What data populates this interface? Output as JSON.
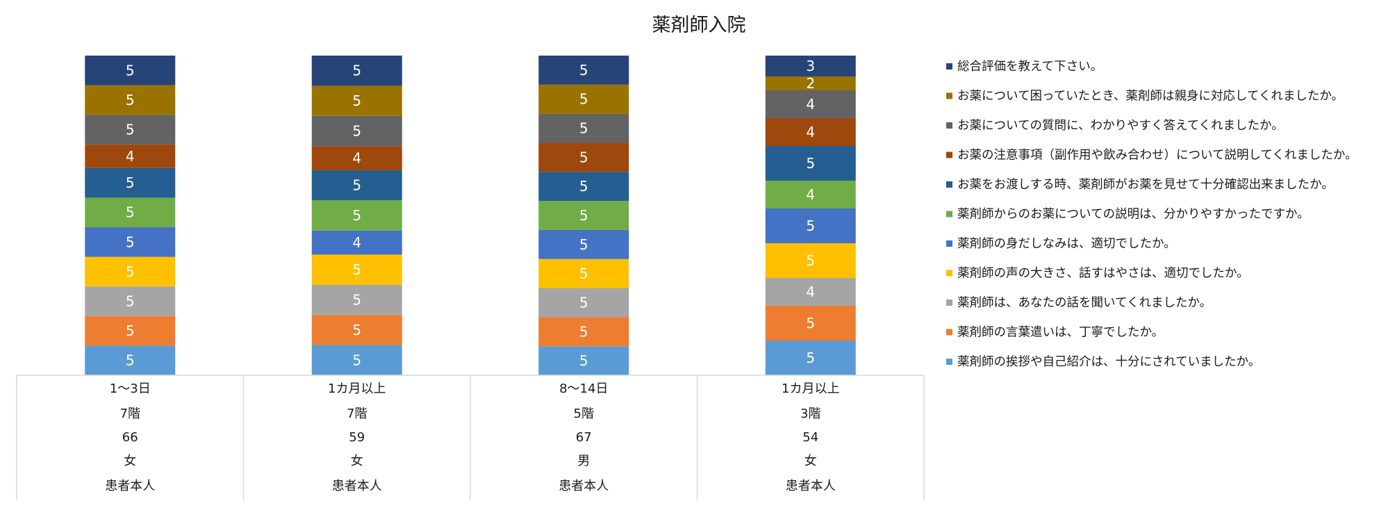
{
  "chart_data": {
    "type": "bar",
    "stacked": true,
    "title": "薬剤師入院",
    "categories": [
      [
        "1～3日",
        "7階",
        "66",
        "女",
        "患者本人"
      ],
      [
        "1カ月以上",
        "7階",
        "59",
        "女",
        "患者本人"
      ],
      [
        "8～14日",
        "5階",
        "67",
        "男",
        "患者本人"
      ],
      [
        "1カ月以上",
        "3階",
        "54",
        "女",
        "患者本人"
      ]
    ],
    "legend_position": "right",
    "grid": false,
    "series": [
      {
        "name": "薬剤師の挨拶や自己紹介は、十分にされていましたか。",
        "color": "#5B9BD5",
        "values": [
          5,
          5,
          5,
          5
        ]
      },
      {
        "name": "薬剤師の言葉遣いは、丁寧でしたか。",
        "color": "#ED7D31",
        "values": [
          5,
          5,
          5,
          5
        ]
      },
      {
        "name": "薬剤師は、あなたの話を聞いてくれましたか。",
        "color": "#A5A5A5",
        "values": [
          5,
          5,
          5,
          4
        ]
      },
      {
        "name": "薬剤師の声の大きさ、話すはやさは、適切でしたか。",
        "color": "#FFC000",
        "values": [
          5,
          5,
          5,
          5
        ]
      },
      {
        "name": "薬剤師の身だしなみは、適切でしたか。",
        "color": "#4472C4",
        "values": [
          5,
          4,
          5,
          5
        ]
      },
      {
        "name": "薬剤師からのお薬についての説明は、分かりやすかったですか。",
        "color": "#70AD47",
        "values": [
          5,
          5,
          5,
          4
        ]
      },
      {
        "name": "お薬をお渡しする時、薬剤師がお薬を見せて十分確認出来ましたか。",
        "color": "#255E91",
        "values": [
          5,
          5,
          5,
          5
        ]
      },
      {
        "name": "お薬の注意事項（副作用や飲み合わせ）について説明してくれましたか。",
        "color": "#9E480E",
        "values": [
          4,
          4,
          5,
          4
        ]
      },
      {
        "name": "お薬についての質問に、わかりやすく答えてくれましたか。",
        "color": "#636363",
        "values": [
          5,
          5,
          5,
          4
        ]
      },
      {
        "name": "お薬について困っていたとき、薬剤師は親身に対応してくれましたか。",
        "color": "#997300",
        "values": [
          5,
          5,
          5,
          2
        ]
      },
      {
        "name": "総合評価を教えて下さい。",
        "color": "#264478",
        "values": [
          5,
          5,
          5,
          3
        ]
      }
    ]
  }
}
